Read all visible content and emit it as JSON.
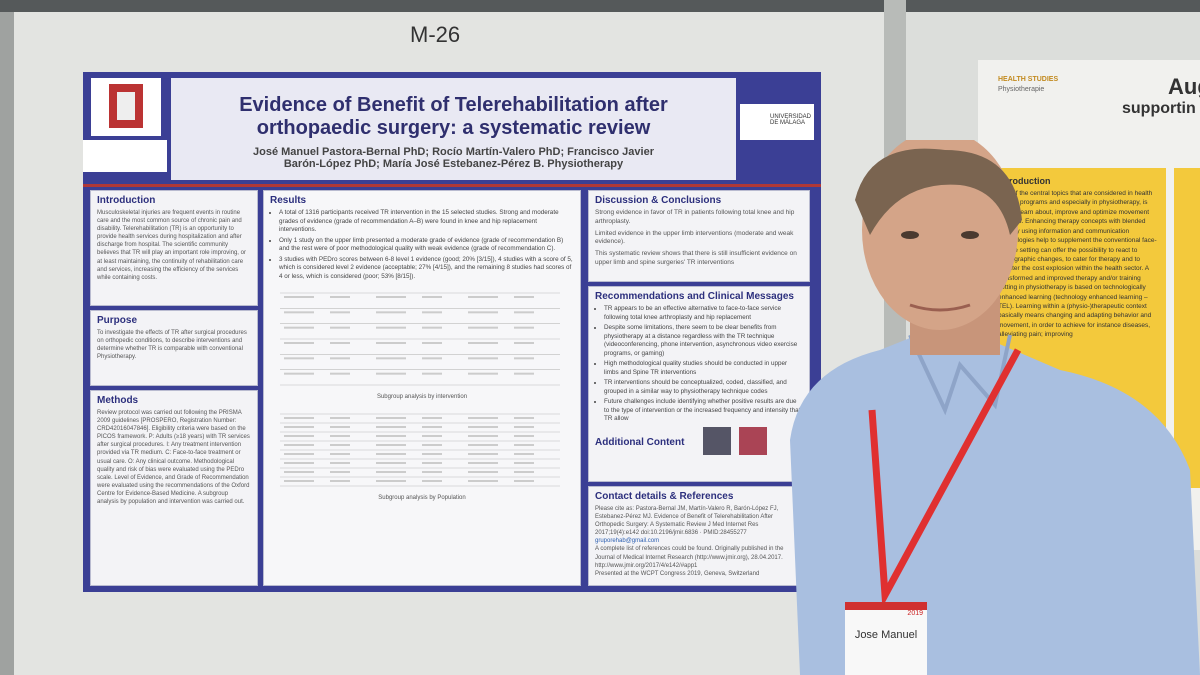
{
  "board_label": "M-26",
  "poster": {
    "title_line1": "Evidence of Benefit of Telerehabilitation after",
    "title_line2": "orthopaedic surgery: a systematic review",
    "authors_line1": "José Manuel Pastora-Bernal PhD; Rocío Martín-Valero PhD; Francisco Javier",
    "authors_line2": "Barón-López PhD; María José Estebanez-Pérez B. Physiotherapy",
    "logo_right": "UNIVERSIDAD DE MÁLAGA",
    "introduction": {
      "heading": "Introduction",
      "body": "Musculoskeletal injuries are frequent events in routine care and the most common source of chronic pain and disability. Telerehabilitation (TR) is an opportunity to provide health services during hospitalization and after discharge from hospital. The scientific community believes that TR will play an important role improving, or at least maintaining, the continuity of rehabilitation care and services, increasing the efficiency of the services while containing costs."
    },
    "purpose": {
      "heading": "Purpose",
      "body": "To investigate the effects of TR after surgical procedures on orthopedic conditions, to describe interventions and determine whether TR is comparable with conventional Physiotherapy."
    },
    "methods": {
      "heading": "Methods",
      "body": "Review protocol was carried out following the PRISMA 2009 guidelines [PROSPERO, Registration Number: CRD42016047846]. Eligibility criteria were based on the PICOS framework. P: Adults (≥18 years) with TR services after surgical procedures. I: Any treatment intervention provided via TR medium. C: Face-to-face treatment or usual care. O: Any clinical outcome. Methodological quality and risk of bias were evaluated using the PEDro scale. Level of Evidence, and Grade of Recommendation were evaluated using the recommendations of the Oxford Centre for Evidence-Based Medicine. A subgroup analysis by population and intervention was carried out."
    },
    "results": {
      "heading": "Results",
      "bullets": [
        "A total of 1316 participants received TR intervention in the 15 selected studies. Strong and moderate grades of evidence (grade of recommendation A–B) were found in knee and hip replacement interventions.",
        "Only 1 study on the upper limb presented a moderate grade of evidence (grade of recommendation B) and the rest were of poor methodological quality with weak evidence (grade of recommendation C).",
        "3 studies with PEDro scores between 6-8 level 1 evidence (good; 20% [3/15]), 4 studies with a score of 5, which is considered level 2 evidence (acceptable; 27% [4/15]), and the remaining 8 studies had scores of 4 or less, which is considered (poor; 53% [8/15])."
      ],
      "table1_caption": "Subgroup analysis by intervention",
      "table2_caption": "Subgroup analysis by Population"
    },
    "discussion": {
      "heading": "Discussion & Conclusions",
      "paragraphs": [
        "Strong evidence in favor of TR in patients following total knee and hip arthroplasty.",
        "Limited evidence in the upper limb interventions (moderate and weak evidence).",
        "This systematic review shows that there is still insufficient evidence on upper limb and spine surgeries' TR interventions"
      ]
    },
    "recommendations": {
      "heading": "Recommendations and Clinical Messages",
      "bullets": [
        "TR appears to be an effective alternative to face-to-face service following total knee arthroplasty and hip replacement",
        "Despite some limitations, there seem to be clear benefits from physiotherapy at a distance regardless with the TR technique (videoconferencing, phone intervention, asynchronous video exercise programs, or gaming)",
        "High methodological quality studies should be conducted in upper limbs and Spine TR interventions",
        "TR interventions should be conceptualized, coded, classified, and grouped in a similar way to physiotherapy technique codes",
        "Future challenges include identifying whether positive results are due to the type of intervention or the increased frequency and intensity that TR allow"
      ]
    },
    "additional": {
      "heading": "Additional Content"
    },
    "contact": {
      "heading": "Contact details & References",
      "body": "Please cite as: Pastora-Bernal JM, Martín-Valero R, Barón-López FJ, Estebanez-Pérez MJ. Evidence of Benefit of Telerehabilitation After Orthopedic Surgery: A Systematic Review J Med Internet Res 2017;19(4):e142 doi:10.2196/jmir.6836 · PMID:28455277",
      "email": "gruporehab@gmail.com",
      "note": "A complete list of references could be found. Originally published in the Journal of Medical Internet Research (http://www.jmir.org), 28.04.2017.",
      "url": "http://www.jmir.org/2017/4/e142/#app1",
      "presented": "Presented at the WCPT Congress 2019, Geneva, Switzerland"
    }
  },
  "neighbor_poster": {
    "header": "HEALTH STUDIES",
    "subheader": "Physiotherapie",
    "title_fragment1": "Aug",
    "title_fragment2": "supportin",
    "section_heading": "Introduction",
    "body": "One of the central topics that are considered in health degree programs and especially in physiotherapy, is how to learn about, improve and optimize movement patterns. Enhancing therapy concepts with blended therapy using information and communication technologies help to supplement the conventional face-to-face setting can offer the possibility to react to demographic changes, to cater for therapy and to counter the cost explosion within the health sector. A transformed and improved therapy and/or training setting in physiotherapy is based on technologically enhanced learning (technology enhanced learning – TEL). Learning within a (physio-)therapeutic context basically means changing and adapting behavior and movement, in order to achieve for instance diseases, alleviating pain; improving"
  },
  "badge": {
    "year": "2019",
    "name": "Jose Manuel"
  }
}
